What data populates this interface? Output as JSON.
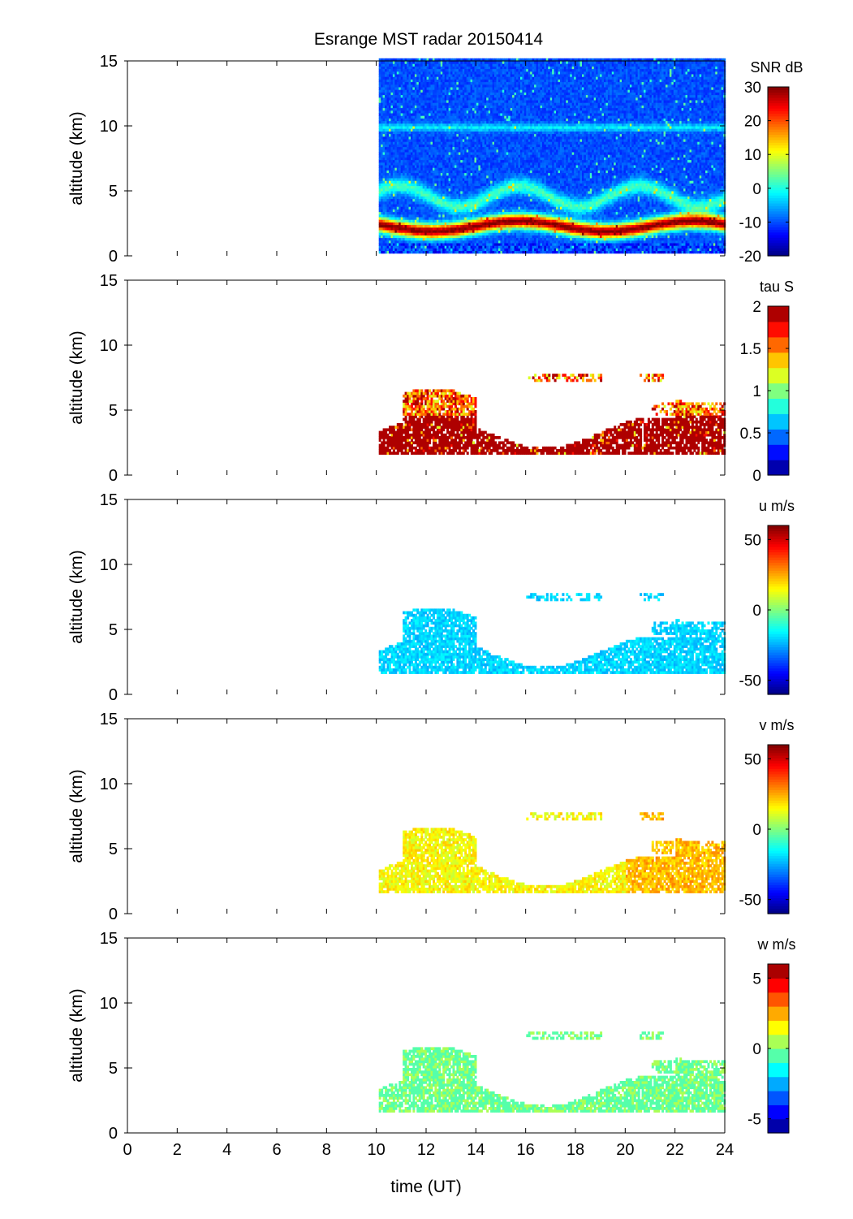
{
  "title": "Esrange MST radar 20150414",
  "xlabel": "time (UT)",
  "ylabel": "altitude (km)",
  "chart_data": [
    {
      "type": "heatmap",
      "name": "snr",
      "colorbar_label": "SNR dB",
      "clim": [
        -20,
        30
      ],
      "cbar_ticks": [
        -20,
        -10,
        0,
        10,
        20,
        30
      ],
      "cbar_continuous": true,
      "field": "snr",
      "xlim": [
        0,
        24
      ],
      "ylim": [
        0,
        15
      ],
      "yticks": [
        0,
        5,
        10,
        15
      ],
      "show_xticklabels": false,
      "data_start_hour": 10.1
    },
    {
      "type": "heatmap",
      "name": "tau",
      "colorbar_label": "tau S",
      "clim": [
        0,
        2
      ],
      "cbar_ticks": [
        0,
        0.5,
        1,
        1.5,
        2
      ],
      "cbar_steps": 11,
      "field": "tau",
      "xlim": [
        0,
        24
      ],
      "ylim": [
        0,
        15
      ],
      "yticks": [
        0,
        5,
        10,
        15
      ],
      "show_xticklabels": false,
      "data_start_hour": 10.1
    },
    {
      "type": "heatmap",
      "name": "u",
      "colorbar_label": "u m/s",
      "clim": [
        -60,
        60
      ],
      "cbar_ticks": [
        -50,
        0,
        50
      ],
      "cbar_continuous": true,
      "field": "u",
      "xlim": [
        0,
        24
      ],
      "ylim": [
        0,
        15
      ],
      "yticks": [
        0,
        5,
        10,
        15
      ],
      "show_xticklabels": false,
      "data_start_hour": 10.1
    },
    {
      "type": "heatmap",
      "name": "v",
      "colorbar_label": "v m/s",
      "clim": [
        -60,
        60
      ],
      "cbar_ticks": [
        -50,
        0,
        50
      ],
      "cbar_continuous": true,
      "field": "v",
      "xlim": [
        0,
        24
      ],
      "ylim": [
        0,
        15
      ],
      "yticks": [
        0,
        5,
        10,
        15
      ],
      "show_xticklabels": false,
      "data_start_hour": 10.1
    },
    {
      "type": "heatmap",
      "name": "w",
      "colorbar_label": "w m/s",
      "clim": [
        -6,
        6
      ],
      "cbar_ticks": [
        -5,
        0,
        5
      ],
      "cbar_steps": 12,
      "field": "w",
      "xlim": [
        0,
        24
      ],
      "ylim": [
        0,
        15
      ],
      "yticks": [
        0,
        5,
        10,
        15
      ],
      "show_xticklabels": true,
      "xticks": [
        0,
        2,
        4,
        6,
        8,
        10,
        12,
        14,
        16,
        18,
        20,
        22,
        24
      ],
      "data_start_hour": 10.1
    }
  ]
}
